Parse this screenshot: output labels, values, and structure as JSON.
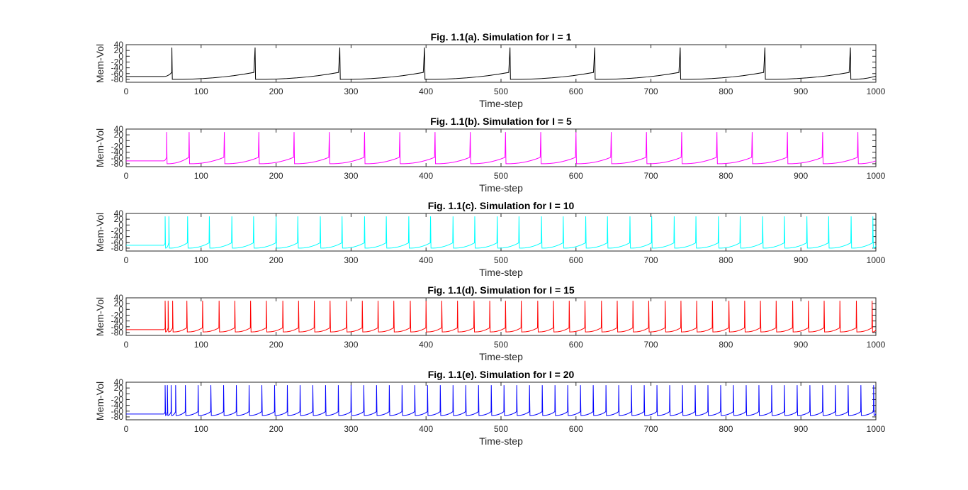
{
  "chart_data": [
    {
      "type": "line",
      "title": "Fig. 1.1(a). Simulation for I = 1",
      "xlabel": "Time-step",
      "ylabel": "Mem-Vol",
      "xlim": [
        0,
        1000
      ],
      "ylim": [
        -90,
        40
      ],
      "xticks": [
        "0",
        "100",
        "200",
        "300",
        "400",
        "500",
        "600",
        "700",
        "800",
        "900",
        "1000"
      ],
      "yticks": [
        "-80",
        "-60",
        "-40",
        "-20",
        "0",
        "20",
        "40"
      ],
      "grid": false,
      "series": [
        {
          "color": "#000000",
          "values": {
            "pre_onset_level": -70,
            "onset": 50,
            "spike_times": [
              61,
              172,
              285,
              398,
              512,
              625,
              739,
              852,
              966
            ],
            "spike_peak": 30,
            "reset": -80,
            "pre_spike_level": -56
          }
        }
      ]
    },
    {
      "type": "line",
      "title": "Fig. 1.1(b). Simulation for I = 5",
      "xlabel": "Time-step",
      "ylabel": "Mem-Vol",
      "xlim": [
        0,
        1000
      ],
      "ylim": [
        -90,
        40
      ],
      "xticks": [
        "0",
        "100",
        "200",
        "300",
        "400",
        "500",
        "600",
        "700",
        "800",
        "900",
        "1000"
      ],
      "yticks": [
        "-80",
        "-60",
        "-40",
        "-20",
        "0",
        "20",
        "40"
      ],
      "grid": false,
      "series": [
        {
          "color": "#ff00ff",
          "values": {
            "pre_onset_level": -70,
            "onset": 50,
            "spike_times": [
              54,
              84,
              131,
              177,
              224,
              271,
              318,
              365,
              412,
              459,
              506,
              553,
              600,
              647,
              694,
              741,
              788,
              835,
              882,
              929,
              976
            ],
            "spike_peak": 30,
            "reset": -80,
            "pre_spike_level": -58
          }
        }
      ]
    },
    {
      "type": "line",
      "title": "Fig. 1.1(c). Simulation for I = 10",
      "xlabel": "Time-step",
      "ylabel": "Mem-Vol",
      "xlim": [
        0,
        1000
      ],
      "ylim": [
        -90,
        40
      ],
      "xticks": [
        "0",
        "100",
        "200",
        "300",
        "400",
        "500",
        "600",
        "700",
        "800",
        "900",
        "1000"
      ],
      "yticks": [
        "-80",
        "-60",
        "-40",
        "-20",
        "0",
        "20",
        "40"
      ],
      "grid": false,
      "series": [
        {
          "color": "#00ffff",
          "values": {
            "pre_onset_level": -70,
            "onset": 50,
            "spike_times": [
              52,
              57,
              82,
              111,
              141,
              170,
              200,
              229,
              259,
              288,
              318,
              347,
              377,
              406,
              436,
              465,
              495,
              524,
              554,
              583,
              613,
              642,
              672,
              701,
              731,
              760,
              790,
              819,
              849,
              878,
              908,
              937,
              967,
              996
            ],
            "spike_peak": 30,
            "reset": -80,
            "pre_spike_level": -62
          }
        }
      ]
    },
    {
      "type": "line",
      "title": "Fig. 1.1(d). Simulation for I = 15",
      "xlabel": "Time-step",
      "ylabel": "Mem-Vol",
      "xlim": [
        0,
        1000
      ],
      "ylim": [
        -90,
        40
      ],
      "xticks": [
        "0",
        "100",
        "200",
        "300",
        "400",
        "500",
        "600",
        "700",
        "800",
        "900",
        "1000"
      ],
      "yticks": [
        "-80",
        "-60",
        "-40",
        "-20",
        "0",
        "20",
        "40"
      ],
      "grid": false,
      "series": [
        {
          "color": "#ff0000",
          "values": {
            "pre_onset_level": -70,
            "onset": 50,
            "spike_times": [
              52,
              56,
              62,
              81,
              102,
              124,
              145,
              166,
              187,
              209,
              230,
              251,
              272,
              294,
              315,
              336,
              357,
              379,
              400,
              421,
              442,
              464,
              485,
              506,
              527,
              549,
              570,
              591,
              612,
              634,
              655,
              676,
              697,
              719,
              740,
              761,
              782,
              804,
              825,
              846,
              867,
              889,
              910,
              931,
              952,
              974,
              995
            ],
            "spike_peak": 30,
            "reset": -78,
            "pre_spike_level": -64
          }
        }
      ]
    },
    {
      "type": "line",
      "title": "Fig. 1.1(e). Simulation for I = 20",
      "xlabel": "Time-step",
      "ylabel": "Mem-Vol",
      "xlim": [
        0,
        1000
      ],
      "ylim": [
        -90,
        40
      ],
      "xticks": [
        "0",
        "100",
        "200",
        "300",
        "400",
        "500",
        "600",
        "700",
        "800",
        "900",
        "1000"
      ],
      "yticks": [
        "-80",
        "-60",
        "-40",
        "-20",
        "0",
        "20",
        "40"
      ],
      "grid": false,
      "series": [
        {
          "color": "#0000ff",
          "values": {
            "pre_onset_level": -70,
            "onset": 50,
            "spike_times": [
              52,
              55,
              60,
              66,
              79,
              96,
              113,
              130,
              147,
              164,
              181,
              198,
              215,
              232,
              249,
              266,
              283,
              300,
              317,
              334,
              351,
              368,
              385,
              402,
              419,
              436,
              453,
              470,
              487,
              504,
              521,
              538,
              555,
              572,
              589,
              606,
              623,
              640,
              657,
              674,
              691,
              708,
              725,
              742,
              759,
              776,
              793,
              810,
              827,
              844,
              861,
              878,
              895,
              912,
              929,
              946,
              963,
              980,
              997
            ],
            "spike_peak": 30,
            "reset": -75,
            "pre_spike_level": -62
          }
        }
      ]
    }
  ]
}
